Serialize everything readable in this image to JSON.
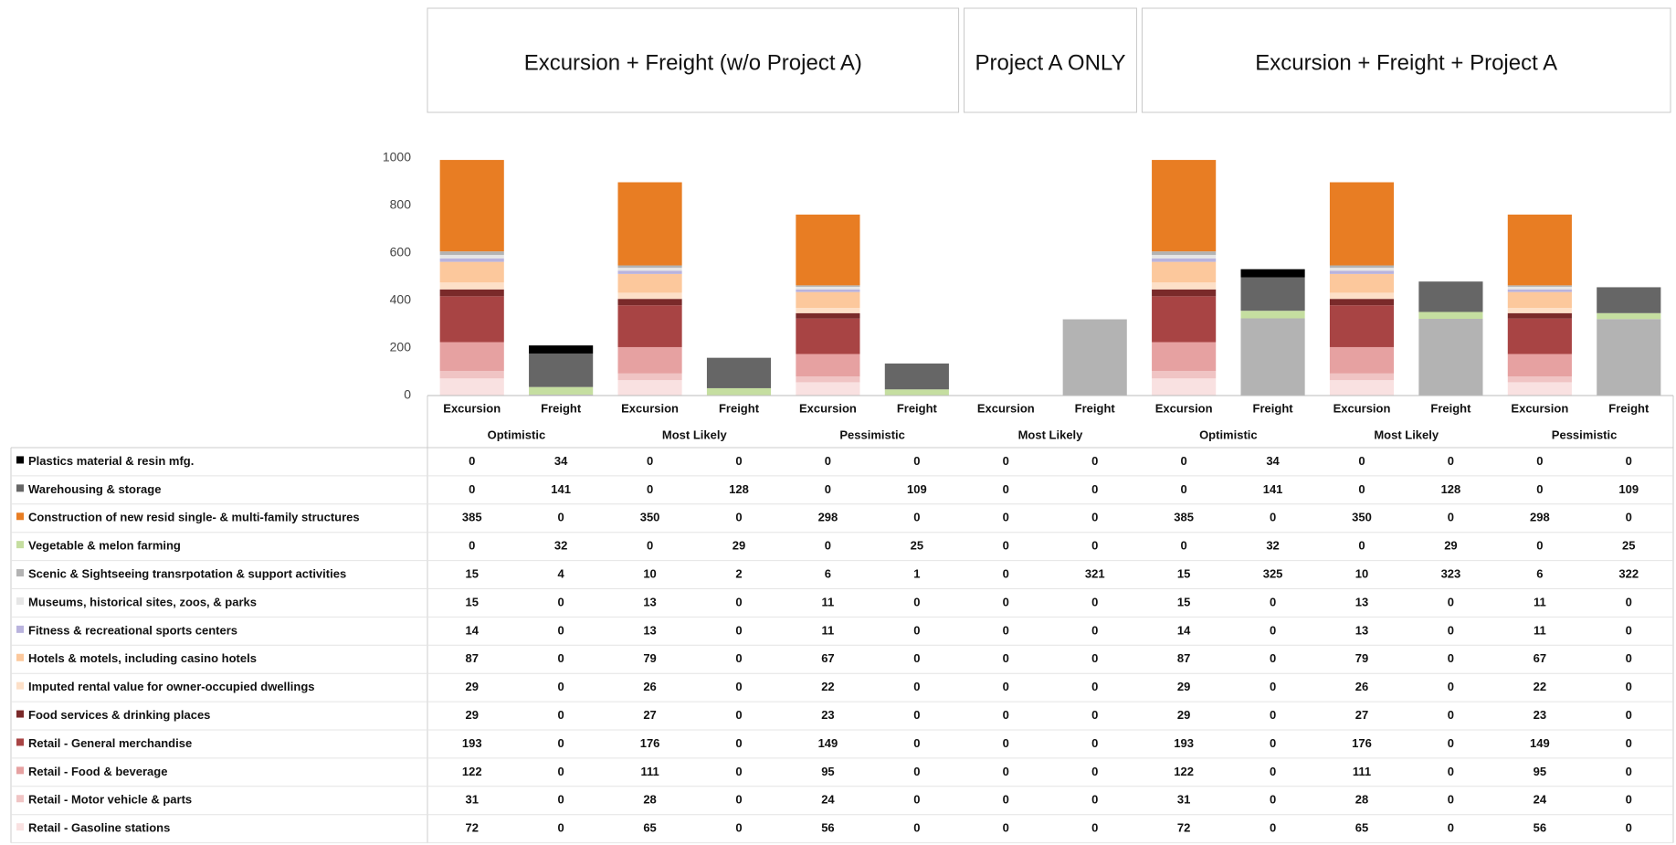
{
  "chart_data": {
    "type": "bar",
    "stacked": true,
    "group_headers": [
      "Excursion + Freight (w/o Project A)",
      "Project A ONLY",
      "Excursion + Freight + Project A"
    ],
    "categories": [
      "Excursion",
      "Freight",
      "Excursion",
      "Freight",
      "Excursion",
      "Freight",
      "Excursion",
      "Freight",
      "Excursion",
      "Freight",
      "Excursion",
      "Freight",
      "Excursion",
      "Freight"
    ],
    "scenarios": [
      "Optimistic",
      "Most Likely",
      "Pessimistic",
      "Most Likely",
      "Optimistic",
      "Most Likely",
      "Pessimistic"
    ],
    "ylim": [
      0,
      1000
    ],
    "yticks": [
      0,
      200,
      400,
      600,
      800,
      1000
    ],
    "series": [
      {
        "name": "Plastics material & resin mfg.",
        "color": "#000000",
        "values": [
          0,
          34,
          0,
          0,
          0,
          0,
          0,
          0,
          0,
          34,
          0,
          0,
          0,
          0
        ]
      },
      {
        "name": "Warehousing & storage",
        "color": "#666666",
        "values": [
          0,
          141,
          0,
          128,
          0,
          109,
          0,
          0,
          0,
          141,
          0,
          128,
          0,
          109
        ]
      },
      {
        "name": "Construction of new resid single- & multi-family structures",
        "color": "#e87d23",
        "values": [
          385,
          0,
          350,
          0,
          298,
          0,
          0,
          0,
          385,
          0,
          350,
          0,
          298,
          0
        ]
      },
      {
        "name": "Vegetable & melon farming",
        "color": "#c5dea0",
        "values": [
          0,
          32,
          0,
          29,
          0,
          25,
          0,
          0,
          0,
          32,
          0,
          29,
          0,
          25
        ]
      },
      {
        "name": "Scenic & Sightseeing transrpotation & support activities",
        "color": "#b3b3b3",
        "values": [
          15,
          4,
          10,
          2,
          6,
          1,
          0,
          321,
          15,
          325,
          10,
          323,
          6,
          322
        ]
      },
      {
        "name": "Museums, historical sites, zoos, & parks",
        "color": "#e6e6e6",
        "values": [
          15,
          0,
          13,
          0,
          11,
          0,
          0,
          0,
          15,
          0,
          13,
          0,
          11,
          0
        ]
      },
      {
        "name": "Fitness & recreational sports centers",
        "color": "#b9b3dd",
        "values": [
          14,
          0,
          13,
          0,
          11,
          0,
          0,
          0,
          14,
          0,
          13,
          0,
          11,
          0
        ]
      },
      {
        "name": "Hotels & motels, including casino hotels",
        "color": "#fcc89c",
        "values": [
          87,
          0,
          79,
          0,
          67,
          0,
          0,
          0,
          87,
          0,
          79,
          0,
          67,
          0
        ]
      },
      {
        "name": "Imputed rental value for owner-occupied dwellings",
        "color": "#fde0c8",
        "values": [
          29,
          0,
          26,
          0,
          22,
          0,
          0,
          0,
          29,
          0,
          26,
          0,
          22,
          0
        ]
      },
      {
        "name": "Food services & drinking places",
        "color": "#7a2a2a",
        "values": [
          29,
          0,
          27,
          0,
          23,
          0,
          0,
          0,
          29,
          0,
          27,
          0,
          23,
          0
        ]
      },
      {
        "name": "Retail - General merchandise",
        "color": "#a84444",
        "values": [
          193,
          0,
          176,
          0,
          149,
          0,
          0,
          0,
          193,
          0,
          176,
          0,
          149,
          0
        ]
      },
      {
        "name": "Retail - Food & beverage",
        "color": "#e6a1a1",
        "values": [
          122,
          0,
          111,
          0,
          95,
          0,
          0,
          0,
          122,
          0,
          111,
          0,
          95,
          0
        ]
      },
      {
        "name": "Retail - Motor vehicle & parts",
        "color": "#f0c4c4",
        "values": [
          31,
          0,
          28,
          0,
          24,
          0,
          0,
          0,
          31,
          0,
          28,
          0,
          24,
          0
        ]
      },
      {
        "name": "Retail - Gasoline stations",
        "color": "#f9e1e1",
        "values": [
          72,
          0,
          65,
          0,
          56,
          0,
          0,
          0,
          72,
          0,
          65,
          0,
          56,
          0
        ]
      }
    ]
  }
}
